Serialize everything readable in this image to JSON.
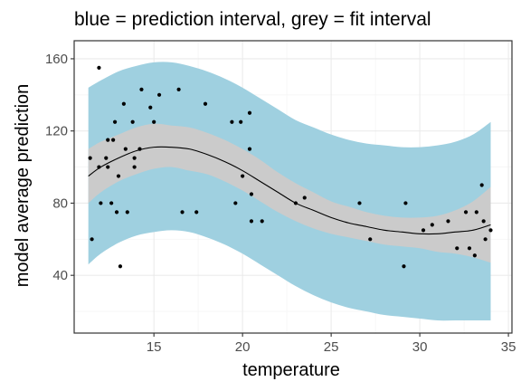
{
  "chart_data": {
    "type": "scatter",
    "title": "blue = prediction interval, grey = fit interval",
    "xlabel": "temperature",
    "ylabel": "model average prediction",
    "xlim": [
      10.5,
      35.2
    ],
    "ylim": [
      8,
      170
    ],
    "x_ticks": [
      15,
      20,
      25,
      30,
      35
    ],
    "y_ticks": [
      40,
      80,
      120,
      160
    ],
    "x_tick_labels": [
      "15",
      "20",
      "25",
      "30",
      "35"
    ],
    "y_tick_labels": [
      "40",
      "80",
      "120",
      "160"
    ],
    "grid": true,
    "legend": "none",
    "colors": {
      "prediction_interval": "#9fd0e0",
      "fit_interval": "#cbcbcb",
      "fit_line": "#000000",
      "points": "#000000",
      "panel_border": "#333333",
      "grid_major": "#ebebeb",
      "grid_minor": "#f5f5f5"
    },
    "fit": {
      "x": [
        11.3,
        12.0,
        13.0,
        14.0,
        15.0,
        16.0,
        17.0,
        18.0,
        19.0,
        20.0,
        21.0,
        22.0,
        23.0,
        24.0,
        25.0,
        26.0,
        27.0,
        28.0,
        29.0,
        30.0,
        31.0,
        32.0,
        33.0,
        34.0
      ],
      "y": [
        95,
        100,
        105,
        109,
        111,
        111,
        110,
        107,
        103,
        98,
        92,
        86,
        80,
        76,
        72,
        69,
        67,
        65,
        64,
        63,
        63,
        64,
        65,
        68
      ],
      "fit_lower": [
        80,
        86,
        92,
        96,
        99,
        100,
        98,
        96,
        92,
        87,
        81,
        75,
        70,
        66,
        63,
        61,
        59,
        57,
        56,
        55,
        53,
        52,
        50,
        47
      ],
      "fit_upper": [
        110,
        114,
        118,
        122,
        124,
        123,
        122,
        119,
        115,
        110,
        104,
        97,
        91,
        86,
        81,
        78,
        75,
        73,
        72,
        72,
        73,
        76,
        81,
        89
      ],
      "pred_lower": [
        46,
        52,
        58,
        62,
        64,
        65,
        64,
        61,
        57,
        52,
        46,
        40,
        34,
        29,
        25,
        22,
        20,
        18,
        17,
        16,
        15,
        15,
        15,
        15
      ],
      "pred_upper": [
        144,
        148,
        153,
        156,
        158,
        158,
        156,
        153,
        149,
        144,
        138,
        132,
        126,
        122,
        118,
        115,
        113,
        112,
        111,
        111,
        112,
        114,
        118,
        125
      ]
    },
    "points": {
      "x": [
        11.4,
        11.5,
        11.9,
        11.9,
        12.0,
        12.3,
        12.4,
        12.4,
        12.6,
        12.7,
        12.8,
        12.9,
        13.0,
        13.1,
        13.3,
        13.4,
        13.5,
        13.8,
        13.9,
        13.9,
        14.2,
        14.3,
        14.8,
        15.0,
        15.3,
        16.4,
        16.6,
        17.4,
        17.9,
        19.4,
        19.6,
        19.9,
        20.0,
        20.4,
        20.4,
        20.5,
        20.5,
        21.1,
        23.0,
        23.5,
        26.6,
        27.2,
        29.1,
        29.2,
        30.2,
        30.7,
        31.6,
        32.1,
        32.6,
        32.8,
        33.1,
        33.2,
        33.5,
        33.6,
        33.7,
        34.0
      ],
      "y": [
        105,
        60,
        155,
        100,
        80,
        105,
        100,
        115,
        80,
        115,
        125,
        75,
        95,
        45,
        135,
        110,
        75,
        125,
        100,
        105,
        110,
        143,
        133,
        125,
        140,
        143,
        75,
        75,
        135,
        125,
        80,
        125,
        95,
        110,
        130,
        85,
        70,
        70,
        80,
        83,
        80,
        60,
        45,
        80,
        65,
        68,
        70,
        55,
        75,
        55,
        51,
        75,
        90,
        70,
        60,
        65
      ]
    }
  }
}
